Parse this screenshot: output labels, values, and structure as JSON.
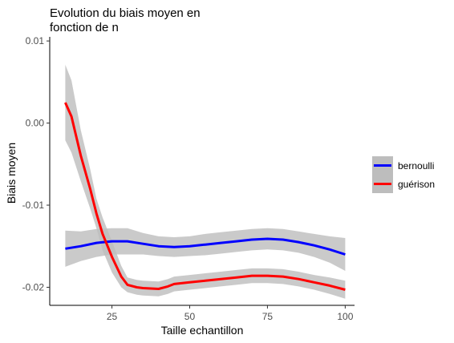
{
  "chart_data": {
    "type": "line",
    "title_lines": [
      "Evolution du biais moyen en",
      "fonction de n"
    ],
    "xlabel": "Taille echantillon",
    "ylabel": "Biais moyen",
    "xlim": [
      5,
      103
    ],
    "ylim": [
      -0.0222,
      0.0105
    ],
    "x_ticks": [
      25,
      50,
      75,
      100
    ],
    "x_tick_labels": [
      "25",
      "50",
      "75",
      "100"
    ],
    "y_ticks": [
      -0.02,
      -0.01,
      0.0,
      0.01
    ],
    "y_tick_labels": [
      "-0.02",
      "-0.01",
      "0.00",
      "0.01"
    ],
    "grid": false,
    "legend_position": "right",
    "series": [
      {
        "name": "bernoulli",
        "color": "#0000ff",
        "x": [
          10,
          15,
          20,
          25,
          30,
          35,
          40,
          45,
          50,
          55,
          60,
          65,
          70,
          75,
          80,
          85,
          90,
          95,
          100
        ],
        "y": [
          -0.0153,
          -0.015,
          -0.0146,
          -0.0144,
          -0.0144,
          -0.0147,
          -0.015,
          -0.0151,
          -0.015,
          -0.0148,
          -0.0146,
          -0.0144,
          -0.0142,
          -0.0141,
          -0.0142,
          -0.0145,
          -0.0149,
          -0.0154,
          -0.016
        ],
        "lower": [
          -0.0175,
          -0.0168,
          -0.0163,
          -0.016,
          -0.016,
          -0.016,
          -0.0162,
          -0.0163,
          -0.0162,
          -0.0161,
          -0.0159,
          -0.0157,
          -0.0155,
          -0.0154,
          -0.0155,
          -0.0158,
          -0.0163,
          -0.017,
          -0.018
        ],
        "upper": [
          -0.0131,
          -0.0132,
          -0.0129,
          -0.0128,
          -0.0128,
          -0.0134,
          -0.0138,
          -0.0139,
          -0.0138,
          -0.0135,
          -0.0133,
          -0.0131,
          -0.0129,
          -0.0128,
          -0.0129,
          -0.0132,
          -0.0135,
          -0.0138,
          -0.014
        ]
      },
      {
        "name": "guérison",
        "color": "#ff0000",
        "x": [
          10,
          12,
          15,
          18,
          20,
          22,
          25,
          28,
          30,
          33,
          35,
          40,
          43,
          45,
          50,
          55,
          60,
          65,
          70,
          75,
          80,
          85,
          90,
          95,
          100
        ],
        "y": [
          0.0025,
          0.0008,
          -0.004,
          -0.008,
          -0.011,
          -0.0135,
          -0.0163,
          -0.0187,
          -0.0197,
          -0.02,
          -0.0201,
          -0.0202,
          -0.0199,
          -0.0196,
          -0.0194,
          -0.0192,
          -0.019,
          -0.0188,
          -0.0186,
          -0.0186,
          -0.0187,
          -0.019,
          -0.0194,
          -0.0198,
          -0.0203
        ],
        "lower": [
          -0.0021,
          -0.0036,
          -0.0071,
          -0.0104,
          -0.0128,
          -0.0155,
          -0.0182,
          -0.02,
          -0.0206,
          -0.0209,
          -0.021,
          -0.0211,
          -0.0208,
          -0.0205,
          -0.0203,
          -0.0201,
          -0.0199,
          -0.0197,
          -0.0195,
          -0.0195,
          -0.0196,
          -0.0199,
          -0.0203,
          -0.0208,
          -0.0214
        ],
        "upper": [
          0.0071,
          0.0052,
          -0.0009,
          -0.0056,
          -0.0092,
          -0.0115,
          -0.0144,
          -0.0174,
          -0.0188,
          -0.0191,
          -0.0192,
          -0.0193,
          -0.019,
          -0.0187,
          -0.0185,
          -0.0183,
          -0.0181,
          -0.0179,
          -0.0177,
          -0.0177,
          -0.0178,
          -0.0181,
          -0.0185,
          -0.0188,
          -0.0192
        ]
      }
    ],
    "ribbon_color": "#bdbdbd"
  }
}
